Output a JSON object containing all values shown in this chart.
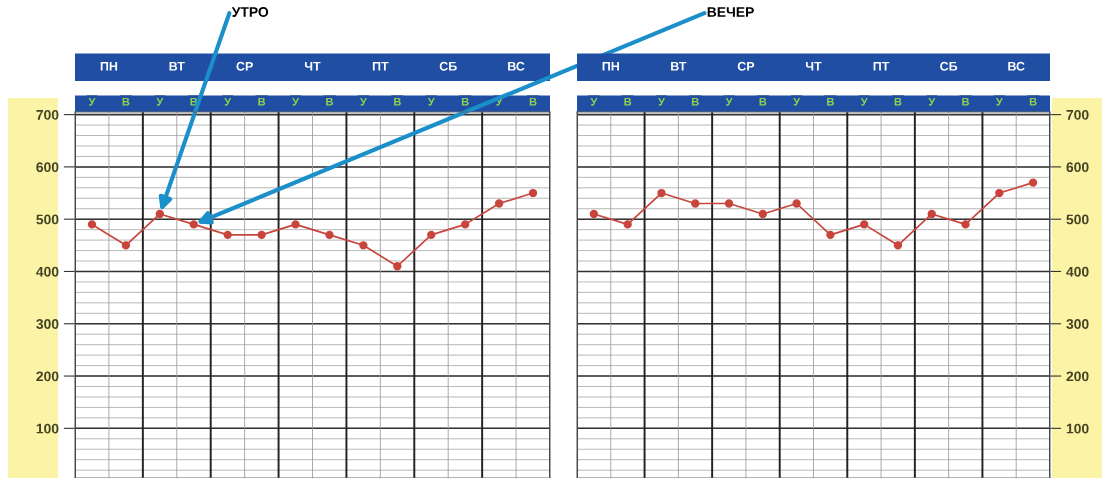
{
  "chart_data": [
    {
      "type": "line",
      "categories": [
        "У",
        "В",
        "У",
        "В",
        "У",
        "В",
        "У",
        "В",
        "У",
        "В",
        "У",
        "В",
        "У",
        "В"
      ],
      "series": [
        {
          "color": "#c8453c",
          "values": [
            490,
            450,
            510,
            490,
            470,
            470,
            490,
            470,
            450,
            410,
            470,
            490,
            530,
            550
          ]
        }
      ],
      "ylim": [
        5,
        705
      ],
      "yticks": [
        100,
        200,
        300,
        400,
        500,
        600,
        700
      ],
      "grid": true,
      "marker": "circle",
      "line_style": "solid",
      "annotations": [
        "ПН",
        "ВТ",
        "СР",
        "ЧТ",
        "ПТ",
        "СБ",
        "ВС",
        "УТРО",
        "ВЕЧЕР"
      ]
    },
    {
      "type": "line",
      "categories": [
        "У",
        "В",
        "У",
        "В",
        "У",
        "В",
        "У",
        "В",
        "У",
        "В",
        "У",
        "В",
        "У",
        "В"
      ],
      "series": [
        {
          "color": "#c8453c",
          "values": [
            510,
            490,
            550,
            530,
            530,
            510,
            530,
            470,
            490,
            450,
            510,
            490,
            550,
            570
          ]
        }
      ],
      "ylim": [
        5,
        705
      ],
      "yticks": [
        100,
        200,
        300,
        400,
        500,
        600,
        700
      ],
      "grid": true,
      "marker": "circle",
      "line_style": "solid",
      "annotations": [
        "ПН",
        "ВТ",
        "СР",
        "ЧТ",
        "ПТ",
        "СБ",
        "ВС"
      ]
    }
  ]
}
